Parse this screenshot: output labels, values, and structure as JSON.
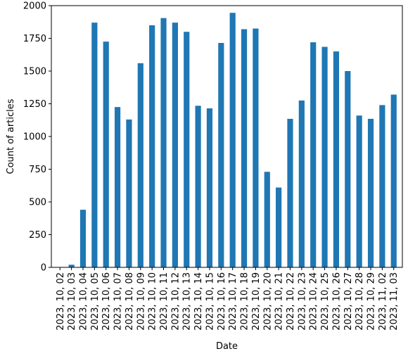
{
  "chart_data": {
    "type": "bar",
    "title": "",
    "xlabel": "Date",
    "ylabel": "Count of articles",
    "ylim": [
      0,
      2000
    ],
    "yticks": [
      0,
      250,
      500,
      750,
      1000,
      1250,
      1500,
      1750,
      2000
    ],
    "grid": false,
    "bar_color": "#1f77b4",
    "categories": [
      "2023, 10, 02",
      "2023, 10, 03",
      "2023, 10, 04",
      "2023, 10, 05",
      "2023, 10, 06",
      "2023, 10, 07",
      "2023, 10, 08",
      "2023, 10, 09",
      "2023, 10, 10",
      "2023, 10, 11",
      "2023, 10, 12",
      "2023, 10, 13",
      "2023, 10, 14",
      "2023, 10, 15",
      "2023, 10, 16",
      "2023, 10, 17",
      "2023, 10, 18",
      "2023, 10, 19",
      "2023, 10, 20",
      "2023, 10, 21",
      "2023, 10, 22",
      "2023, 10, 23",
      "2023, 10, 24",
      "2023, 10, 25",
      "2023, 10, 26",
      "2023, 10, 27",
      "2023, 10, 28",
      "2023, 10, 29",
      "2023, 11, 02",
      "2023, 11, 03"
    ],
    "values": [
      2,
      20,
      440,
      1870,
      1725,
      1225,
      1130,
      1560,
      1850,
      1905,
      1870,
      1800,
      1235,
      1215,
      1715,
      1945,
      1820,
      1825,
      730,
      610,
      1135,
      1275,
      1720,
      1685,
      1650,
      1500,
      1160,
      1135,
      1240,
      1320
    ]
  }
}
